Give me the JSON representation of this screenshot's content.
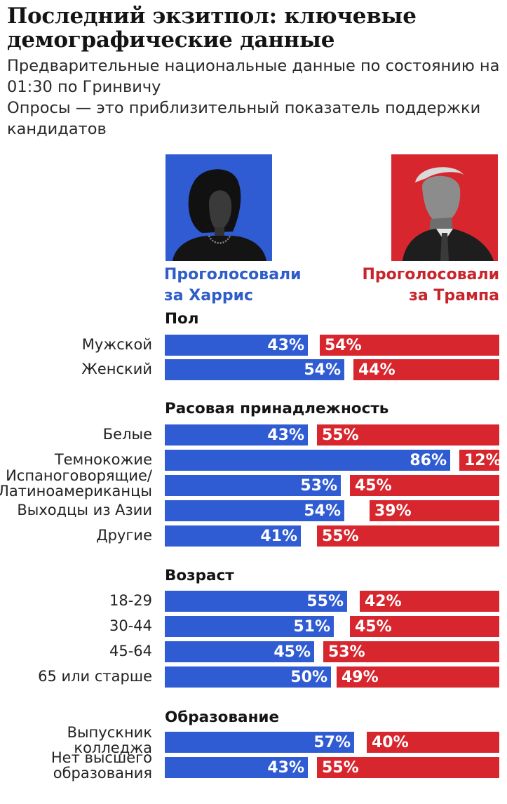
{
  "title": "Последний экзитпол: ключевые демографические данные",
  "subtitle_lines": [
    "Предварительные национальные данные по состоянию на 01:30 по Гринвичу",
    "Опросы — это приблизительный показатель поддержки кандидатов"
  ],
  "candidates": {
    "harris": {
      "label": "Проголосовали за Харрис",
      "color": "#2f5bd3"
    },
    "trump": {
      "label": "Проголосовали за Трампа",
      "color": "#d7262e"
    }
  },
  "chart_data": {
    "type": "bar",
    "orientation": "horizontal",
    "title": "Последний экзитпол: ключевые демографические данные",
    "unit": "%",
    "series": [
      {
        "name": "Проголосовали за Харрис",
        "color": "#2f5bd3"
      },
      {
        "name": "Проголосовали за Трампа",
        "color": "#d7262e"
      }
    ],
    "groups": [
      {
        "title": "Пол",
        "rows": [
          {
            "label": "Мужской",
            "harris": 43,
            "trump": 54
          },
          {
            "label": "Женский",
            "harris": 54,
            "trump": 44
          }
        ]
      },
      {
        "title": "Расовая принадлежность",
        "rows": [
          {
            "label": "Белые",
            "harris": 43,
            "trump": 55
          },
          {
            "label": "Темнокожие",
            "harris": 86,
            "trump": 12
          },
          {
            "label": "Испаноговорящие/ Латиноамериканцы",
            "harris": 53,
            "trump": 45
          },
          {
            "label": "Выходцы из Азии",
            "harris": 54,
            "trump": 39
          },
          {
            "label": "Другие",
            "harris": 41,
            "trump": 55
          }
        ]
      },
      {
        "title": "Возраст",
        "rows": [
          {
            "label": "18-29",
            "harris": 55,
            "trump": 42
          },
          {
            "label": "30-44",
            "harris": 51,
            "trump": 45
          },
          {
            "label": "45-64",
            "harris": 45,
            "trump": 53
          },
          {
            "label": "65 или старше",
            "harris": 50,
            "trump": 49
          }
        ]
      },
      {
        "title": "Образование",
        "rows": [
          {
            "label": "Выпускник колледжа",
            "harris": 57,
            "trump": 40
          },
          {
            "label": "Нет высшего образования",
            "harris": 43,
            "trump": 55
          }
        ]
      }
    ]
  }
}
